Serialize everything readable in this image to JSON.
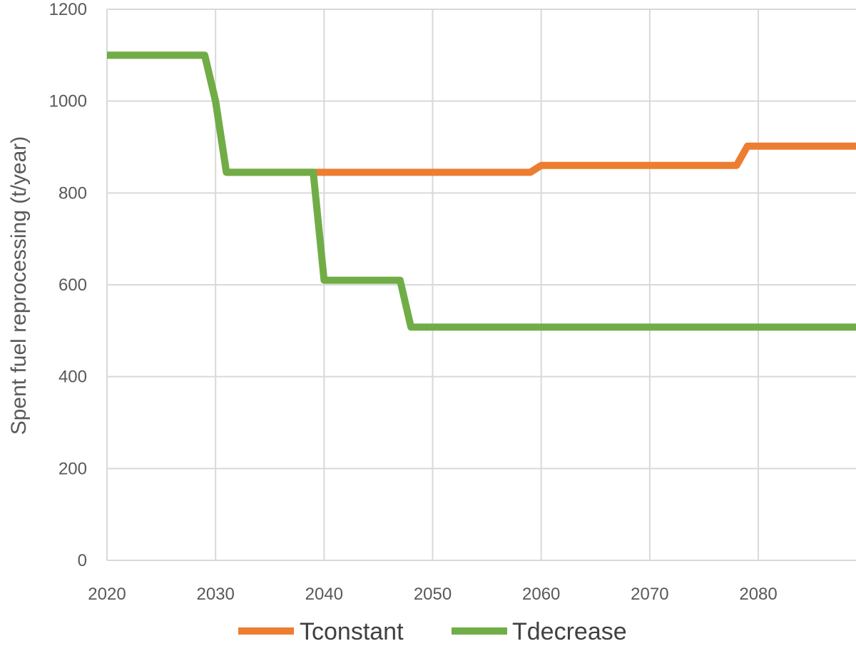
{
  "chart_data": {
    "type": "line",
    "title": "",
    "xlabel": "",
    "ylabel": "Spent fuel reprocessing (t/year)",
    "xlim": [
      2020,
      2089
    ],
    "ylim": [
      0,
      1200
    ],
    "x_ticks": [
      2020,
      2030,
      2040,
      2050,
      2060,
      2070,
      2080
    ],
    "y_ticks": [
      0,
      200,
      400,
      600,
      800,
      1000,
      1200
    ],
    "grid": true,
    "legend_position": "bottom",
    "series": [
      {
        "name": "Tconstant",
        "color": "#ED7D31",
        "points": [
          [
            2020,
            1100
          ],
          [
            2029,
            1100
          ],
          [
            2030,
            1000
          ],
          [
            2031,
            845
          ],
          [
            2059,
            845
          ],
          [
            2060,
            860
          ],
          [
            2078,
            860
          ],
          [
            2079,
            902
          ],
          [
            2089,
            902
          ]
        ]
      },
      {
        "name": "Tdecrease",
        "color": "#70AD47",
        "points": [
          [
            2020,
            1100
          ],
          [
            2029,
            1100
          ],
          [
            2030,
            1000
          ],
          [
            2031,
            845
          ],
          [
            2039,
            845
          ],
          [
            2040,
            610
          ],
          [
            2047,
            610
          ],
          [
            2048,
            508
          ],
          [
            2089,
            508
          ]
        ]
      }
    ]
  }
}
